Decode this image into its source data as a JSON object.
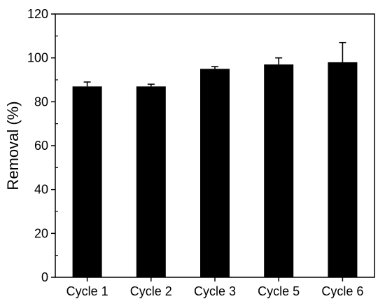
{
  "chart_data": {
    "type": "bar",
    "categories": [
      "Cycle 1",
      "Cycle 2",
      "Cycle 3",
      "Cycle 5",
      "Cycle 6"
    ],
    "values": [
      87,
      87,
      95,
      97,
      98
    ],
    "error_upper": [
      2,
      1,
      1,
      3,
      9
    ],
    "xlabel": "",
    "ylabel": "Removal (%)",
    "ylim": [
      0,
      120
    ],
    "yticks": [
      "0",
      "20",
      "40",
      "60",
      "80",
      "100",
      "120"
    ],
    "minor_ytick_step": 10,
    "grid": false,
    "legend": "none",
    "bar_color": "#000000"
  }
}
